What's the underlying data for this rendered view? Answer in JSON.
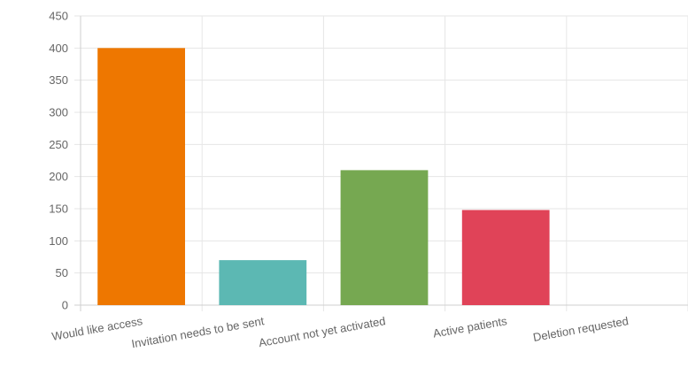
{
  "chart_data": {
    "type": "bar",
    "categories": [
      "Would like access",
      "Invitation needs to be sent",
      "Account not yet activated",
      "Active patients",
      "Deletion requested"
    ],
    "values": [
      400,
      70,
      210,
      148,
      0
    ],
    "colors": [
      "#ee7700",
      "#5cb8b3",
      "#76a851",
      "#e04358",
      "#cccccc"
    ],
    "title": "",
    "xlabel": "",
    "ylabel": "",
    "ylim": [
      0,
      450
    ],
    "yticks": [
      0,
      50,
      100,
      150,
      200,
      250,
      300,
      350,
      400,
      450
    ],
    "grid": true,
    "legend": "none"
  }
}
